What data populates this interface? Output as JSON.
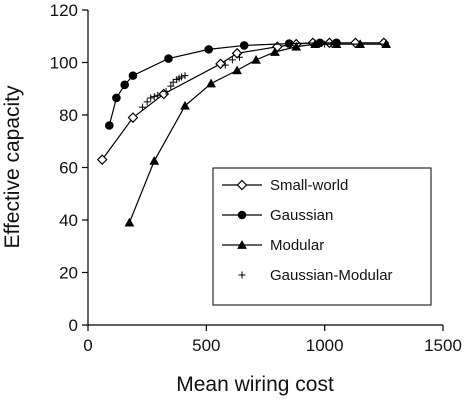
{
  "chart_data": {
    "type": "scatter",
    "xlabel": "Mean wiring cost",
    "ylabel": "Effective capacity",
    "xlim": [
      0,
      1500
    ],
    "ylim": [
      0,
      120
    ],
    "x_ticks": [
      0,
      500,
      1000,
      1500
    ],
    "y_ticks": [
      0,
      20,
      40,
      60,
      80,
      100,
      120
    ],
    "grid": false,
    "legend_position": "lower-right",
    "series": [
      {
        "name": "Small-world",
        "marker": "open-diamond",
        "line": true,
        "color": "#000000",
        "x": [
          60,
          190,
          320,
          560,
          630,
          800,
          880,
          950,
          1020,
          1130,
          1250
        ],
        "y": [
          63,
          79,
          88,
          99.5,
          103.5,
          106,
          107,
          107.5,
          107.5,
          107.5,
          107.5
        ]
      },
      {
        "name": "Gaussian",
        "marker": "filled-circle",
        "line": true,
        "color": "#000000",
        "x": [
          90,
          120,
          155,
          190,
          340,
          510,
          660,
          850,
          980,
          1050
        ],
        "y": [
          76,
          86.5,
          91.5,
          95,
          101.5,
          105,
          106.5,
          107.2,
          107.5,
          107.5
        ]
      },
      {
        "name": "Modular",
        "marker": "filled-triangle",
        "line": true,
        "color": "#000000",
        "x": [
          175,
          280,
          410,
          520,
          630,
          710,
          790,
          880,
          960,
          1050,
          1150,
          1260
        ],
        "y": [
          39,
          62.5,
          83.5,
          92,
          97,
          101,
          104,
          106,
          107,
          107,
          107,
          107
        ]
      },
      {
        "name": "Gaussian-Modular",
        "marker": "plus",
        "line": false,
        "color": "#000000",
        "x": [
          230,
          250,
          265,
          280,
          295,
          330,
          350,
          360,
          375,
          385,
          395,
          410,
          580,
          610,
          640,
          1000,
          1030,
          1060
        ],
        "y": [
          83,
          85,
          86.5,
          87,
          87.5,
          89,
          91,
          92.5,
          93.5,
          94,
          94.5,
          95,
          99,
          101,
          102,
          107,
          107,
          107
        ]
      }
    ]
  }
}
